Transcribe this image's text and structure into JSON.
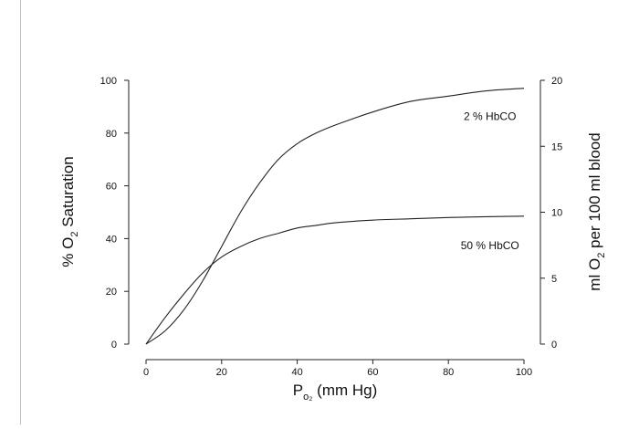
{
  "chart_data": {
    "type": "line",
    "title": "",
    "xlabel": {
      "main": "P",
      "sub": "o₂",
      "rest": " (mm Hg)"
    },
    "ylabel_left": {
      "main": "% O",
      "sub": "2",
      "rest": " Saturation"
    },
    "ylabel_right": {
      "main": "ml O",
      "sub": "2",
      "rest": " per 100 ml blood"
    },
    "xlim": [
      0,
      100
    ],
    "ylim_left": [
      0,
      100
    ],
    "ylim_right": [
      0,
      20
    ],
    "x_ticks": [
      "0",
      "20",
      "40",
      "60",
      "80",
      "100"
    ],
    "y_left_ticks": [
      "0",
      "20",
      "40",
      "60",
      "80",
      "100"
    ],
    "y_right_ticks": [
      "0",
      "5",
      "10",
      "15",
      "20"
    ],
    "grid": false,
    "series": [
      {
        "label": "2 % HbCO",
        "x": [
          0,
          5,
          10,
          15,
          20,
          25,
          30,
          35,
          40,
          45,
          50,
          60,
          70,
          80,
          90,
          100
        ],
        "y": [
          0,
          5,
          13,
          24,
          37,
          50,
          61,
          70,
          76,
          80,
          83,
          88,
          92,
          94,
          96,
          97
        ]
      },
      {
        "label": "50 % HbCO",
        "x": [
          0,
          5,
          10,
          15,
          20,
          25,
          30,
          35,
          40,
          45,
          50,
          60,
          70,
          80,
          90,
          100
        ],
        "y": [
          0,
          10,
          19,
          27,
          33,
          37,
          40,
          42,
          44,
          45,
          46,
          47,
          47.5,
          48,
          48.3,
          48.5
        ]
      }
    ],
    "annotations": [
      {
        "text": "2 % HbCO",
        "x": 91,
        "y": 85
      },
      {
        "text": "50 % HbCO",
        "x": 91,
        "y": 36
      }
    ]
  }
}
